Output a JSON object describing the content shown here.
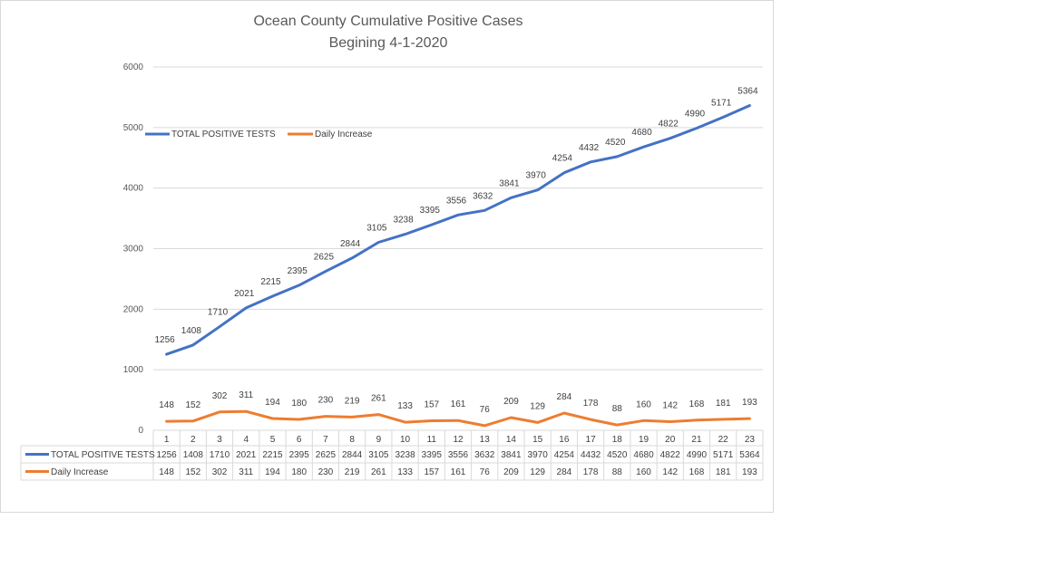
{
  "chart_data": {
    "type": "line",
    "title": "Ocean County Cumulative Positive Cases",
    "subtitle": "Begining 4-1-2020",
    "xlabel": "",
    "ylabel": "",
    "ylim": [
      0,
      6000
    ],
    "y_ticks": [
      "0",
      "1000",
      "2000",
      "3000",
      "4000",
      "5000",
      "6000"
    ],
    "grid": true,
    "legend_position": "top-left",
    "categories": [
      "1",
      "2",
      "3",
      "4",
      "5",
      "6",
      "7",
      "8",
      "9",
      "10",
      "11",
      "12",
      "13",
      "14",
      "15",
      "16",
      "17",
      "18",
      "19",
      "20",
      "21",
      "22",
      "23"
    ],
    "series": [
      {
        "name": "TOTAL POSITIVE TESTS",
        "color": "#4472c4",
        "values": [
          1256,
          1408,
          1710,
          2021,
          2215,
          2395,
          2625,
          2844,
          3105,
          3238,
          3395,
          3556,
          3632,
          3841,
          3970,
          4254,
          4432,
          4520,
          4680,
          4822,
          4990,
          5171,
          5364
        ]
      },
      {
        "name": "Daily Increase",
        "color": "#ed7d31",
        "values": [
          148,
          152,
          302,
          311,
          194,
          180,
          230,
          219,
          261,
          133,
          157,
          161,
          76,
          209,
          129,
          284,
          178,
          88,
          160,
          142,
          168,
          181,
          193
        ]
      }
    ],
    "data_table": true
  }
}
